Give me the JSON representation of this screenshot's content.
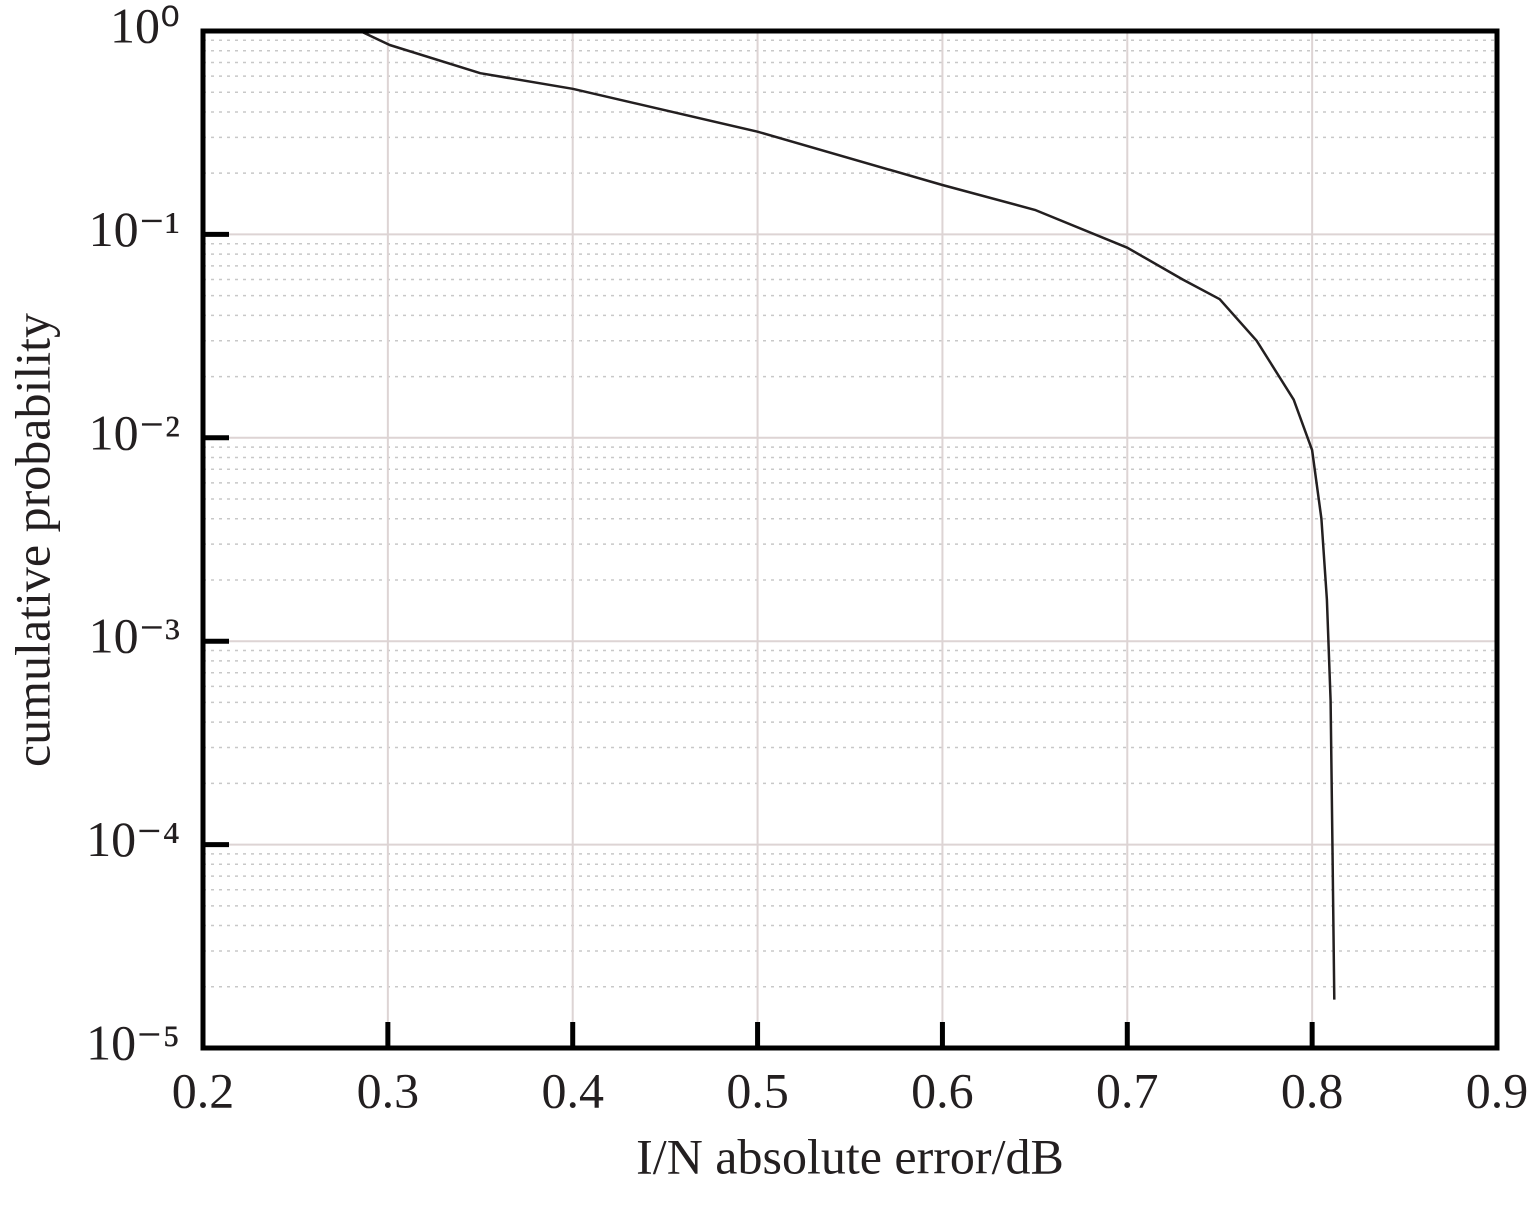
{
  "chart_data": {
    "type": "line",
    "xlabel": "I/N absolute error/dB",
    "ylabel": "cumulative probability",
    "x": [
      0.285,
      0.301,
      0.35,
      0.4,
      0.5,
      0.6,
      0.65,
      0.7,
      0.73,
      0.75,
      0.77,
      0.79,
      0.8,
      0.805,
      0.808,
      0.81,
      0.811,
      0.812
    ],
    "values": [
      1.0,
      0.853,
      0.62,
      0.52,
      0.32,
      0.175,
      0.132,
      0.086,
      0.06,
      0.048,
      0.03,
      0.0154,
      0.0087,
      0.004,
      0.0016,
      0.00051,
      9.4e-05,
      1.73e-05
    ],
    "color": "#231f20",
    "xlim": [
      0.2,
      0.9
    ],
    "ylim": [
      1e-05,
      1
    ],
    "yscale": "log",
    "xticks": [
      0.2,
      0.3,
      0.4,
      0.5,
      0.6,
      0.7,
      0.8,
      0.9
    ],
    "yticks": [
      {
        "value": 1,
        "label": "10⁰"
      },
      {
        "value": 0.1,
        "label": "10⁻¹"
      },
      {
        "value": 0.01,
        "label": "10⁻²"
      },
      {
        "value": 0.001,
        "label": "10⁻³"
      },
      {
        "value": 0.0001,
        "label": "10⁻⁴"
      },
      {
        "value": 1e-05,
        "label": "10⁻⁵"
      }
    ],
    "y_minor_ticks": [
      2e-05,
      3e-05,
      4e-05,
      5e-05,
      6e-05,
      7e-05,
      8e-05,
      9e-05,
      0.0002,
      0.0003,
      0.0004,
      0.0005,
      0.0006,
      0.0007,
      0.0008,
      0.0009,
      0.002,
      0.003,
      0.004,
      0.005,
      0.006,
      0.007,
      0.008,
      0.009,
      0.02,
      0.03,
      0.04,
      0.05,
      0.06,
      0.07,
      0.08,
      0.09,
      0.2,
      0.3,
      0.4,
      0.5,
      0.6,
      0.7,
      0.8,
      0.9
    ],
    "grid": true,
    "minor_grid": true
  }
}
